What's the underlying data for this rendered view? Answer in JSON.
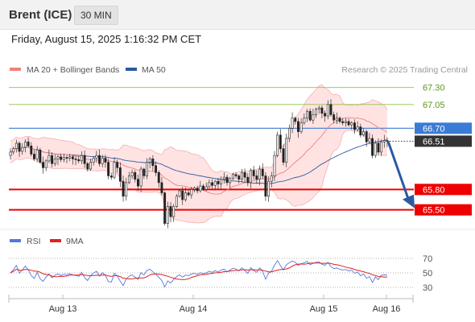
{
  "header": {
    "instrument": "Brent (ICE)",
    "timeframe": "30 MIN"
  },
  "datetime": "Friday, August 15, 2025 1:16:32 PM CET",
  "legend": [
    {
      "label": "MA 20 + Bollinger Bands",
      "color": "#f08080"
    },
    {
      "label": "MA 50",
      "color": "#2c5aa0"
    }
  ],
  "rsi_legend": [
    {
      "label": "RSI",
      "color": "#5577dd"
    },
    {
      "label": "9MA",
      "color": "#dd2222"
    }
  ],
  "credit": "Research © 2025 Trading Central",
  "chart_data": {
    "type": "candlestick",
    "price_ylim": [
      65.2,
      67.45
    ],
    "x_ticks": [
      "Aug 13",
      "Aug 14",
      "Aug 15",
      "Aug 16"
    ],
    "levels": [
      {
        "value": 67.3,
        "label": "67.30",
        "color": "#8bc34a",
        "kind": "resistance"
      },
      {
        "value": 67.05,
        "label": "67.05",
        "color": "#8bc34a",
        "kind": "resistance"
      },
      {
        "value": 66.7,
        "label": "66.70",
        "color": "#3a7bd5",
        "kind": "pivot"
      },
      {
        "value": 65.8,
        "label": "65.80",
        "color": "#ee0000",
        "kind": "support"
      },
      {
        "value": 65.5,
        "label": "65.50",
        "color": "#ee0000",
        "kind": "support"
      }
    ],
    "last_price": {
      "value": 66.51,
      "label": "66.51",
      "color": "#333333"
    },
    "forecast": {
      "from": 66.51,
      "to": 65.5
    },
    "closes": [
      66.35,
      66.4,
      66.48,
      66.36,
      66.42,
      66.5,
      66.44,
      66.32,
      66.25,
      66.38,
      66.2,
      66.12,
      66.22,
      66.3,
      66.18,
      66.25,
      66.28,
      66.24,
      66.27,
      66.26,
      66.28,
      66.25,
      66.24,
      66.22,
      66.3,
      66.18,
      66.1,
      66.2,
      66.26,
      66.3,
      66.18,
      66.26,
      66.2,
      66.0,
      65.98,
      66.2,
      66.12,
      65.92,
      65.7,
      65.9,
      66.0,
      66.05,
      65.95,
      65.85,
      66.1,
      66.0,
      66.2,
      66.25,
      66.15,
      66.05,
      65.9,
      65.75,
      65.3,
      65.55,
      65.4,
      65.55,
      65.7,
      65.78,
      65.65,
      65.75,
      65.72,
      65.8,
      65.82,
      65.78,
      65.85,
      65.8,
      65.84,
      65.9,
      65.86,
      65.92,
      65.88,
      65.95,
      65.98,
      65.9,
      65.96,
      66.02,
      66.0,
      65.95,
      66.05,
      65.98,
      65.9,
      66.08,
      66.0,
      65.95,
      66.1,
      66.0,
      65.7,
      65.92,
      66.0,
      66.3,
      66.6,
      66.4,
      66.2,
      66.55,
      66.7,
      66.85,
      66.8,
      66.65,
      66.78,
      66.85,
      66.95,
      66.82,
      66.9,
      66.98,
      67.0,
      66.92,
      66.88,
      67.05,
      66.9,
      66.82,
      66.85,
      66.8,
      66.78,
      66.8,
      66.75,
      66.78,
      66.68,
      66.72,
      66.6,
      66.65,
      66.5,
      66.55,
      66.3,
      66.48,
      66.35,
      66.5,
      66.52,
      66.51
    ],
    "rsi_ylim": [
      20,
      80
    ],
    "rsi_levels": [
      70,
      50,
      30
    ],
    "rsi_ticks": [
      "70",
      "50",
      "30"
    ]
  }
}
